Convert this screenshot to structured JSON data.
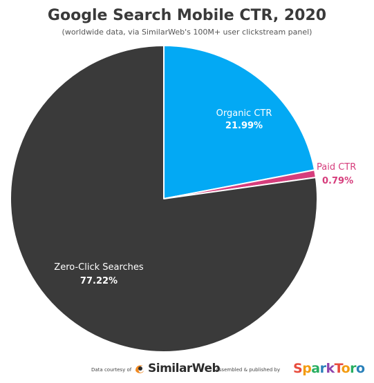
{
  "chart_data": {
    "type": "pie",
    "title": "Google Search Mobile CTR, 2020",
    "subtitle": "(worldwide data, via SimilarWeb's 100M+ user clickstream panel)",
    "slices": [
      {
        "label": "Organic CTR",
        "value": 21.99,
        "value_label": "21.99%",
        "color": "#03a9f4",
        "label_color": "#ffffff",
        "value_color": "#ffffff"
      },
      {
        "label": "Paid CTR",
        "value": 0.79,
        "value_label": "0.79%",
        "color": "#d63d7c",
        "label_color": "#d63d7c",
        "value_color": "#d63d7c"
      },
      {
        "label": "Zero-Click Searches",
        "value": 77.22,
        "value_label": "77.22%",
        "color": "#3a3a3a",
        "label_color": "#ffffff",
        "value_color": "#ffffff"
      }
    ],
    "start": "12 o'clock",
    "direction": "clockwise"
  },
  "footer": {
    "left_credit": "Data courtesy of",
    "left_brand": "SimilarWeb",
    "left_brand_icon": "similarweb-logo-icon",
    "right_credit": "Assembled & published by",
    "right_brand": "SparkToro",
    "right_brand_colors": [
      "#e84c3d",
      "#f39c12",
      "#27ae60",
      "#2980b9",
      "#8e44ad",
      "#e84c3d",
      "#f39c12",
      "#27ae60",
      "#2980b9"
    ]
  }
}
